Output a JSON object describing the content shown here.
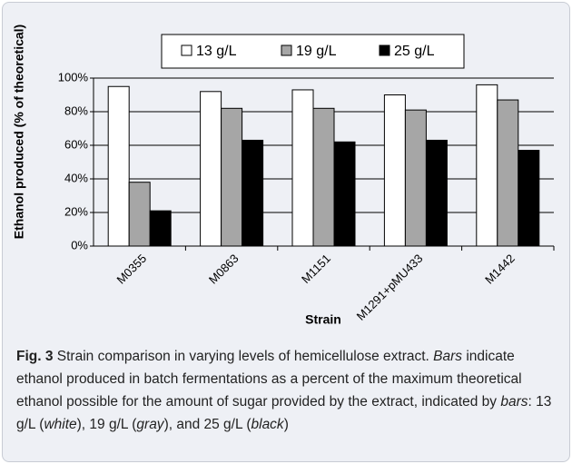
{
  "chart_data": {
    "type": "bar",
    "y_axis_label": "Ethanol produced (% of theoretical)",
    "x_axis_label": "Strain",
    "categories": [
      "M0355",
      "M0863",
      "M1151",
      "M1291+pMU433",
      "M1442"
    ],
    "series": [
      {
        "name": "13 g/L",
        "color": "#ffffff",
        "values": [
          95,
          92,
          93,
          90,
          96
        ]
      },
      {
        "name": "19 g/L",
        "color": "#a6a6a6",
        "values": [
          38,
          82,
          82,
          81,
          87
        ]
      },
      {
        "name": "25 g/L",
        "color": "#000000",
        "values": [
          21,
          63,
          62,
          63,
          57
        ]
      }
    ],
    "ylim": [
      0,
      100
    ],
    "yticks": [
      {
        "value": 0,
        "label": "0%"
      },
      {
        "value": 20,
        "label": "20%"
      },
      {
        "value": 40,
        "label": "40%"
      },
      {
        "value": 60,
        "label": "60%"
      },
      {
        "value": 80,
        "label": "80%"
      },
      {
        "value": 100,
        "label": "100%"
      }
    ],
    "grid": true
  },
  "caption": {
    "label": "Fig. 3",
    "runs": [
      {
        "text": " Strain comparison in varying levels of hemicellulose extract. ",
        "italic": false
      },
      {
        "text": "Bars",
        "italic": true
      },
      {
        "text": " indicate ethanol produced in batch fermentations as a percent of the maximum theoretical ethanol possible for the amount of sugar provided by the extract, indicated by ",
        "italic": false
      },
      {
        "text": "bars",
        "italic": true
      },
      {
        "text": ": 13 g/L (",
        "italic": false
      },
      {
        "text": "white",
        "italic": true
      },
      {
        "text": "), 19 g/L (",
        "italic": false
      },
      {
        "text": "gray",
        "italic": true
      },
      {
        "text": "), and 25 g/L (",
        "italic": false
      },
      {
        "text": "black",
        "italic": true
      },
      {
        "text": ")",
        "italic": false
      }
    ]
  }
}
